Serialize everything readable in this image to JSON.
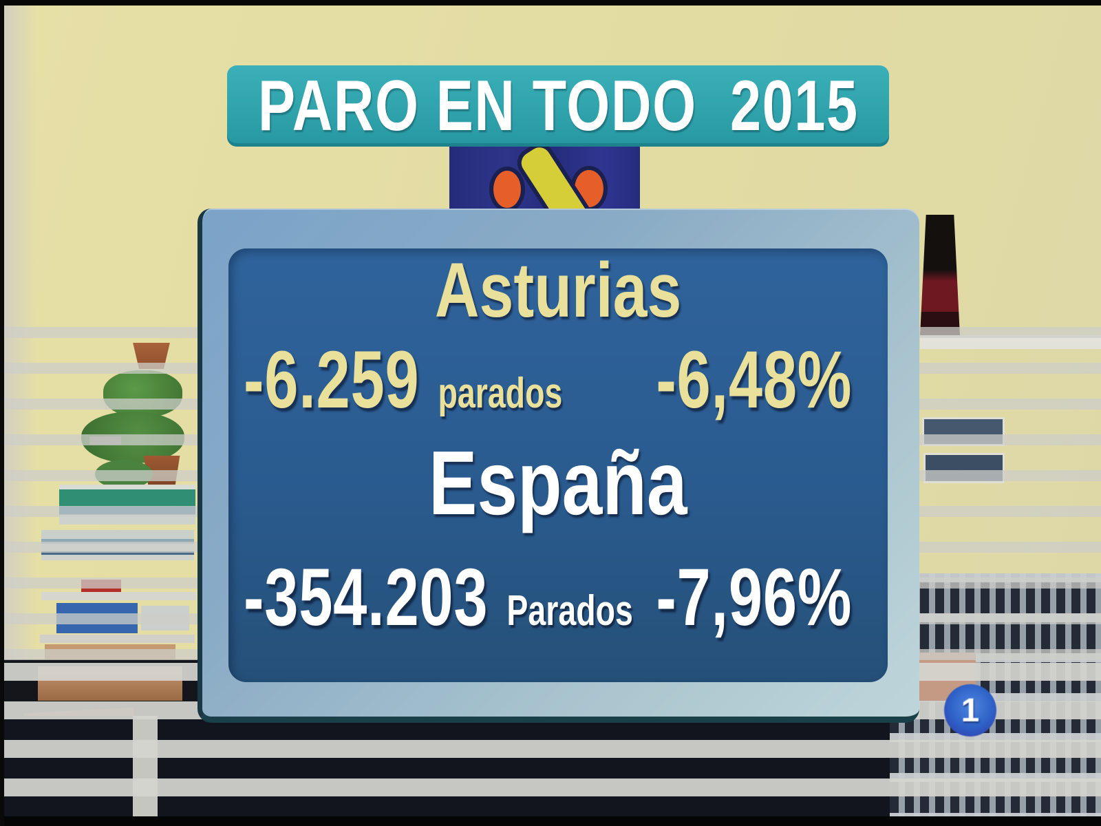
{
  "banner": {
    "title": "PARO EN TODO  2015"
  },
  "board": {
    "region": {
      "name": "Asturias",
      "change_absolute": "-6.259",
      "unit_label": "parados",
      "change_percent": "-6,48%"
    },
    "country": {
      "name": "España",
      "change_absolute": "-354.203",
      "unit_label": "Parados",
      "change_percent": "-7,96%"
    }
  },
  "channel_badge": {
    "number": "1"
  },
  "colors": {
    "banner_teal": "#2EA3AD",
    "panel_frame_blue": "#8FB0C9",
    "panel_navy": "#2A5B8F",
    "region_text_khaki": "#E9E19B",
    "country_text_white": "#FFFFFF",
    "logo_navy": "#272E80",
    "logo_orange": "#E65E28",
    "logo_yellow": "#D6CE38",
    "badge_blue": "#2D62C6",
    "wall_yellow": "#E3DCA4"
  }
}
